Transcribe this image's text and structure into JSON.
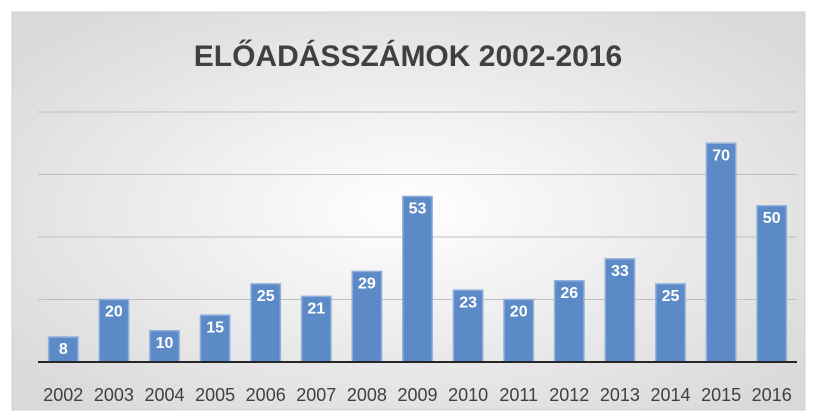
{
  "chart_data": {
    "type": "bar",
    "title": "ELŐADÁSSZÁMOK 2002-2016",
    "categories": [
      "2002",
      "2003",
      "2004",
      "2005",
      "2006",
      "2007",
      "2008",
      "2009",
      "2010",
      "2011",
      "2012",
      "2013",
      "2014",
      "2015",
      "2016"
    ],
    "values": [
      8,
      20,
      10,
      15,
      25,
      21,
      29,
      53,
      23,
      20,
      26,
      33,
      25,
      70,
      50
    ],
    "color": "#5b8ac6",
    "ylim": [
      0,
      80
    ],
    "yticks": [
      0,
      20,
      40,
      60,
      80
    ],
    "grid": true
  }
}
